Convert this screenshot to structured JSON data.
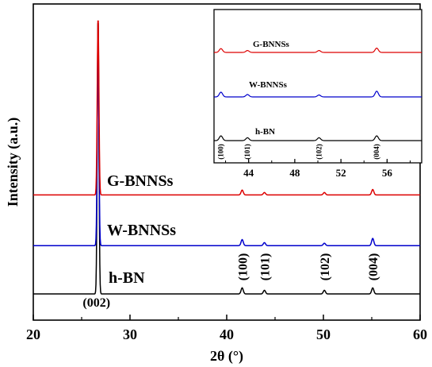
{
  "chart_data": {
    "type": "line",
    "xlabel": "2θ (°)",
    "ylabel": "Intensity (a.u.)",
    "xlim": [
      20,
      60
    ],
    "xticks": [
      20,
      30,
      40,
      50,
      60
    ],
    "peaks_x": [
      26.7,
      41.6,
      43.9,
      50.1,
      55.1
    ],
    "series": [
      {
        "name": "h-BN",
        "color": "#000000",
        "offset": 0.0,
        "heights": [
          2.3,
          0.05,
          0.03,
          0.03,
          0.05
        ]
      },
      {
        "name": "W-BNNSs",
        "color": "#0000cc",
        "offset": 0.4,
        "heights": [
          1.65,
          0.05,
          0.025,
          0.02,
          0.06
        ]
      },
      {
        "name": "G-BNNSs",
        "color": "#dd0000",
        "offset": 0.82,
        "heights": [
          1.48,
          0.04,
          0.02,
          0.02,
          0.045
        ]
      }
    ],
    "annotations": [
      {
        "text": "(002)",
        "x": 26.7
      },
      {
        "text": "(100)",
        "x": 41.6
      },
      {
        "text": "(101)",
        "x": 43.9
      },
      {
        "text": "(102)",
        "x": 50.1
      },
      {
        "text": "(004)",
        "x": 55.1
      }
    ],
    "inset": {
      "xlim": [
        41,
        59
      ],
      "xticks": [
        44,
        48,
        52,
        56
      ],
      "series_labels": [
        "G-BNNSs",
        "W-BNNSs",
        "h-BN"
      ],
      "annotations": [
        "(100)",
        "(101)",
        "(102)",
        "(004)"
      ]
    }
  }
}
